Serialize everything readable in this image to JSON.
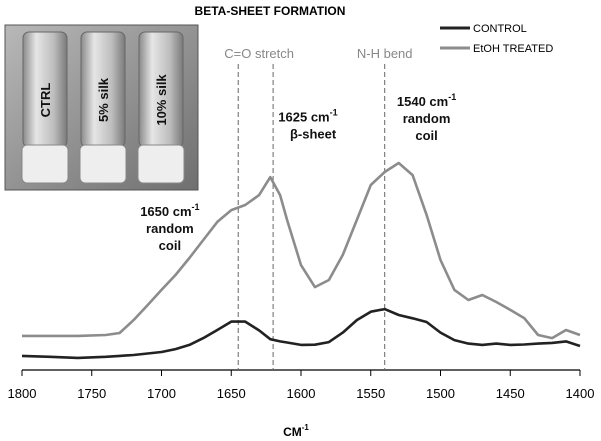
{
  "chart_data": {
    "type": "line",
    "title": "BETA-SHEET FORMATION",
    "x_label": "CM",
    "x_label_sup": "-1",
    "x": [
      1800,
      1780,
      1760,
      1740,
      1730,
      1720,
      1710,
      1700,
      1690,
      1680,
      1670,
      1660,
      1650,
      1640,
      1630,
      1622,
      1615,
      1610,
      1600,
      1590,
      1580,
      1570,
      1560,
      1550,
      1540,
      1530,
      1520,
      1510,
      1500,
      1490,
      1480,
      1470,
      1460,
      1450,
      1440,
      1430,
      1420,
      1410,
      1400
    ],
    "series": [
      {
        "name": "CONTROL",
        "color": "#222222",
        "values": [
          6.4,
          6,
          5.5,
          6,
          6.4,
          6.8,
          7.5,
          8.2,
          9.5,
          11.4,
          14.5,
          18.2,
          22,
          22,
          18,
          14,
          13,
          12.5,
          11.4,
          11.5,
          12.7,
          17,
          22.7,
          26.5,
          27.7,
          25,
          23.5,
          21.8,
          17,
          13.6,
          12,
          11.4,
          12,
          11.4,
          11.6,
          12,
          12.3,
          13,
          10.9
        ]
      },
      {
        "name": "EtOH TREATED",
        "color": "#8c8c8c",
        "values": [
          15.5,
          15.5,
          15.5,
          15.9,
          16.8,
          22.7,
          29.5,
          36.4,
          43.2,
          50.9,
          59.1,
          67.3,
          72.7,
          75,
          79.5,
          87.7,
          79.5,
          68.2,
          47.7,
          37.7,
          40.9,
          52.3,
          68.2,
          84.1,
          90,
          94.1,
          88.6,
          70.5,
          50,
          36.4,
          31.8,
          34.1,
          30.9,
          27.3,
          23.6,
          15.9,
          14.5,
          18.2,
          15.9
        ]
      }
    ],
    "xlim": [
      1800,
      1400
    ],
    "ylim": [
      0,
      100
    ],
    "xticks": [
      1800,
      1750,
      1700,
      1650,
      1600,
      1550,
      1500,
      1450,
      1400
    ],
    "legend": "upper right",
    "vlines": [
      1645,
      1620,
      1540
    ],
    "vline_labels": [
      {
        "text": "C=O stretch",
        "x": 1630
      },
      {
        "text": "N-H bend",
        "x": 1540
      }
    ],
    "annotations": [
      {
        "text": "1650 cm",
        "sup": "-1",
        "lines": [
          "random",
          "coil"
        ],
        "x": 1694,
        "y": 70
      },
      {
        "text": "1625 cm",
        "sup": "-1",
        "lines": [
          "β-sheet"
        ],
        "x": 1595,
        "y": 113
      },
      {
        "text": "1540 cm",
        "sup": "-1",
        "lines": [
          "random",
          "coil"
        ],
        "x": 1510,
        "y": 120
      }
    ],
    "inset_labels": [
      "CTRL",
      "5% silk",
      "10% silk"
    ]
  }
}
